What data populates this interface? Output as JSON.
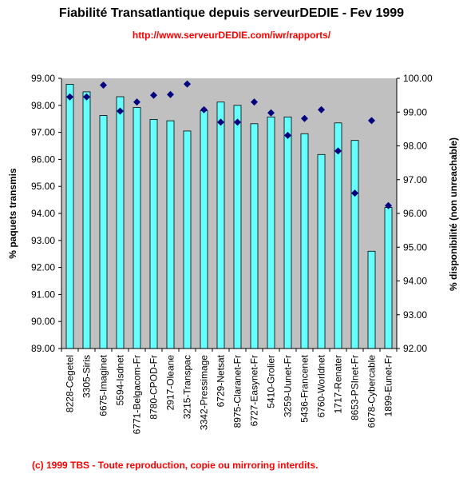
{
  "title": "Fiabilité Transatlantique depuis serveurDEDIE - Fev 1999",
  "subtitle": "http://www.serveurDEDIE.com/iwr/rapports/",
  "footer": "(c) 1999 TBS - Toute reproduction, copie ou mirroring interdits.",
  "colors": {
    "plot_background": "#c0c0c0",
    "bar_fill": "#66ffff",
    "bar_stroke": "#000000",
    "marker": "#000080",
    "subtitle": "#ff0000",
    "footer": "#ff0000"
  },
  "chart_data": {
    "type": "bar",
    "title": "Fiabilité Transatlantique depuis serveurDEDIE - Fev 1999",
    "subtitle": "http://www.serveurDEDIE.com/iwr/rapports/",
    "ylabel": "% paquets transmis",
    "y2label": "% disponibilité (non unreachable)",
    "ylim": [
      89,
      99
    ],
    "y2lim": [
      92,
      100
    ],
    "yticks": [
      "99.00",
      "98.00",
      "97.00",
      "96.00",
      "95.00",
      "94.00",
      "93.00",
      "92.00",
      "91.00",
      "90.00",
      "89.00"
    ],
    "y2ticks": [
      "100.00",
      "99.00",
      "98.00",
      "97.00",
      "96.00",
      "95.00",
      "94.00",
      "93.00",
      "92.00"
    ],
    "grid": false,
    "legend": "none",
    "categories": [
      "8228-Cegetel",
      "3305-Siris",
      "6675-Imaginet",
      "5594-Isdnet",
      "6771-Belgacom-Fr",
      "8780-CPOD-Fr",
      "2917-Oleane",
      "3215-Transpac",
      "3342-Pressimage",
      "6729-Netsat",
      "8975-Claranet-Fr",
      "6727-Easynet-Fr",
      "5410-Grolier",
      "3259-Uunet-Fr",
      "5436-Francenet",
      "6760-Worldnet",
      "1717-Renater",
      "8653-PSInet-Fr",
      "6678-Cybercable",
      "1899-Eunet-Fr"
    ],
    "series": [
      {
        "type": "bar",
        "axis": "left",
        "values": [
          98.78,
          98.5,
          97.62,
          98.32,
          97.92,
          97.48,
          97.43,
          97.05,
          97.8,
          98.12,
          98.0,
          97.32,
          97.57,
          97.57,
          96.95,
          96.18,
          97.35,
          96.7,
          92.6,
          94.22
        ]
      },
      {
        "type": "scatter",
        "marker": "diamond",
        "axis": "right",
        "values": [
          99.45,
          99.45,
          99.8,
          99.03,
          99.3,
          99.5,
          99.52,
          99.83,
          99.07,
          98.7,
          98.7,
          99.3,
          98.98,
          98.31,
          98.81,
          99.07,
          97.85,
          96.6,
          98.75,
          96.23
        ]
      }
    ]
  }
}
